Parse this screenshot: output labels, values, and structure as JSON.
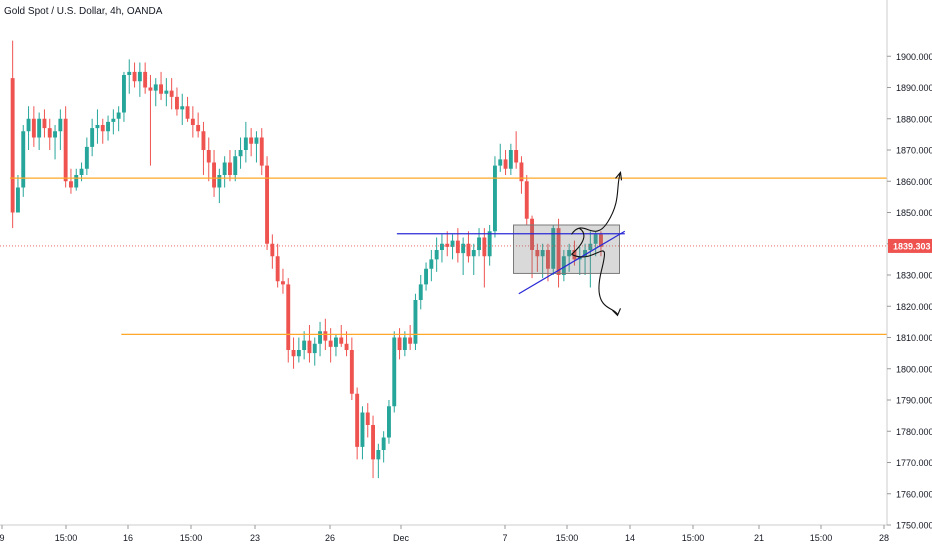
{
  "chart_data": {
    "type": "candlestick",
    "title": "Gold Spot / U.S. Dollar, 4h, OANDA",
    "last_price": "1839.303",
    "ylim": [
      1750,
      1910
    ],
    "y_ticks": [
      "1900.000",
      "1890.000",
      "1880.000",
      "1870.000",
      "1860.000",
      "1850.000",
      "1840.000",
      "1830.000",
      "1820.000",
      "1810.000",
      "1800.000",
      "1790.000",
      "1780.000",
      "1770.000",
      "1760.000",
      "1750.000"
    ],
    "x_ticks": [
      "9",
      "15:00",
      "16",
      "15:00",
      "23",
      "26",
      "Dec",
      "7",
      "15:00",
      "14",
      "15:00",
      "21",
      "15:00",
      "28"
    ],
    "colors": {
      "up": "#26a69a",
      "down": "#ef5350",
      "resistance": "#ffa726",
      "trendline": "#2b2bd6",
      "last_price_label": "#ef5350",
      "axis_text": "#131722",
      "grid_border": "#cccccc"
    },
    "horizontal_levels": [
      {
        "price": 1861,
        "from_bar": 0
      },
      {
        "price": 1811,
        "from_bar": 21
      }
    ],
    "trendlines": [
      {
        "type": "horizontal",
        "price": 1843.2,
        "from_bar": 73,
        "to_bar": 116
      },
      {
        "type": "rising",
        "from": {
          "bar": 96,
          "price": 1824
        },
        "to": {
          "bar": 116,
          "price": 1844
        }
      }
    ],
    "consolidation_box": {
      "from_bar": 95,
      "to_bar": 115,
      "top": 1846,
      "bottom": 1830.5
    },
    "scenario_arrows": [
      "up",
      "down"
    ],
    "candles_note": "OHLC values approximated from chart",
    "candles": [
      [
        1893,
        1905,
        1845,
        1850
      ],
      [
        1850,
        1862,
        1851,
        1858
      ],
      [
        1858,
        1878,
        1855,
        1876
      ],
      [
        1876,
        1884,
        1870,
        1880
      ],
      [
        1880,
        1884,
        1871,
        1874
      ],
      [
        1874,
        1882,
        1870,
        1880
      ],
      [
        1880,
        1883,
        1874,
        1877
      ],
      [
        1877,
        1880,
        1870,
        1874
      ],
      [
        1874,
        1878,
        1867,
        1876
      ],
      [
        1876,
        1883,
        1870,
        1880
      ],
      [
        1880,
        1884,
        1858,
        1860
      ],
      [
        1860,
        1864,
        1856,
        1858
      ],
      [
        1858,
        1864,
        1857,
        1862
      ],
      [
        1862,
        1866,
        1860,
        1864
      ],
      [
        1864,
        1874,
        1862,
        1871
      ],
      [
        1871,
        1880,
        1868,
        1877
      ],
      [
        1877,
        1883,
        1872,
        1878
      ],
      [
        1878,
        1880,
        1872,
        1876
      ],
      [
        1876,
        1881,
        1873,
        1879
      ],
      [
        1879,
        1883,
        1875,
        1880
      ],
      [
        1880,
        1884,
        1876,
        1882
      ],
      [
        1882,
        1895,
        1879,
        1894
      ],
      [
        1894,
        1899,
        1888,
        1895
      ],
      [
        1895,
        1898,
        1890,
        1892
      ],
      [
        1892,
        1898,
        1887,
        1895
      ],
      [
        1895,
        1898,
        1888,
        1890
      ],
      [
        1890,
        1894,
        1865,
        1889
      ],
      [
        1889,
        1893,
        1884,
        1891
      ],
      [
        1891,
        1895,
        1886,
        1888
      ],
      [
        1888,
        1893,
        1884,
        1889
      ],
      [
        1889,
        1893,
        1883,
        1887
      ],
      [
        1887,
        1890,
        1881,
        1883
      ],
      [
        1883,
        1888,
        1878,
        1884
      ],
      [
        1884,
        1887,
        1879,
        1880
      ],
      [
        1880,
        1884,
        1874,
        1878
      ],
      [
        1878,
        1882,
        1874,
        1876
      ],
      [
        1876,
        1879,
        1862,
        1870
      ],
      [
        1870,
        1874,
        1860,
        1866
      ],
      [
        1866,
        1870,
        1855,
        1858
      ],
      [
        1858,
        1864,
        1853,
        1862
      ],
      [
        1862,
        1868,
        1858,
        1866
      ],
      [
        1866,
        1870,
        1860,
        1862
      ],
      [
        1862,
        1870,
        1860,
        1868
      ],
      [
        1868,
        1874,
        1864,
        1870
      ],
      [
        1870,
        1879,
        1866,
        1874
      ],
      [
        1874,
        1877,
        1868,
        1872
      ],
      [
        1872,
        1876,
        1866,
        1874
      ],
      [
        1874,
        1877,
        1862,
        1865
      ],
      [
        1865,
        1868,
        1838,
        1840
      ],
      [
        1840,
        1843,
        1832,
        1836
      ],
      [
        1836,
        1840,
        1826,
        1828
      ],
      [
        1828,
        1832,
        1824,
        1827
      ],
      [
        1827,
        1829,
        1802,
        1806
      ],
      [
        1806,
        1810,
        1800,
        1804
      ],
      [
        1804,
        1810,
        1802,
        1806
      ],
      [
        1806,
        1812,
        1803,
        1809
      ],
      [
        1809,
        1814,
        1802,
        1805
      ],
      [
        1805,
        1810,
        1801,
        1808
      ],
      [
        1808,
        1815,
        1804,
        1812
      ],
      [
        1812,
        1816,
        1806,
        1809
      ],
      [
        1809,
        1813,
        1802,
        1807
      ],
      [
        1807,
        1811,
        1804,
        1810
      ],
      [
        1810,
        1814,
        1807,
        1808
      ],
      [
        1808,
        1812,
        1804,
        1806
      ],
      [
        1806,
        1810,
        1790,
        1792
      ],
      [
        1792,
        1794,
        1771,
        1775
      ],
      [
        1775,
        1788,
        1771,
        1786
      ],
      [
        1786,
        1789,
        1778,
        1782
      ],
      [
        1782,
        1785,
        1765,
        1771
      ],
      [
        1771,
        1776,
        1765,
        1774
      ],
      [
        1774,
        1780,
        1770,
        1778
      ],
      [
        1778,
        1790,
        1776,
        1788
      ],
      [
        1788,
        1812,
        1786,
        1810
      ],
      [
        1810,
        1813,
        1803,
        1806
      ],
      [
        1806,
        1812,
        1804,
        1810
      ],
      [
        1810,
        1814,
        1806,
        1808
      ],
      [
        1808,
        1824,
        1806,
        1822
      ],
      [
        1822,
        1830,
        1819,
        1827
      ],
      [
        1827,
        1834,
        1825,
        1832
      ],
      [
        1832,
        1838,
        1828,
        1835
      ],
      [
        1835,
        1842,
        1831,
        1838
      ],
      [
        1838,
        1843,
        1834,
        1840
      ],
      [
        1840,
        1844,
        1836,
        1839
      ],
      [
        1839,
        1843,
        1835,
        1841
      ],
      [
        1841,
        1845,
        1834,
        1837
      ],
      [
        1837,
        1842,
        1830,
        1840
      ],
      [
        1840,
        1844,
        1834,
        1836
      ],
      [
        1836,
        1840,
        1830,
        1838
      ],
      [
        1838,
        1845,
        1836,
        1842
      ],
      [
        1842,
        1845,
        1826,
        1836
      ],
      [
        1836,
        1846,
        1833,
        1844
      ],
      [
        1844,
        1868,
        1842,
        1865
      ],
      [
        1865,
        1872,
        1863,
        1867
      ],
      [
        1867,
        1870,
        1862,
        1864
      ],
      [
        1864,
        1872,
        1862,
        1870
      ],
      [
        1870,
        1876,
        1864,
        1866
      ],
      [
        1866,
        1868,
        1856,
        1860
      ],
      [
        1860,
        1862,
        1846,
        1848
      ],
      [
        1848,
        1849,
        1829,
        1838
      ],
      [
        1838,
        1840,
        1831,
        1836
      ],
      [
        1836,
        1840,
        1829,
        1838
      ],
      [
        1838,
        1840,
        1828,
        1832
      ],
      [
        1832,
        1846,
        1830,
        1845
      ],
      [
        1845,
        1848,
        1826,
        1830
      ],
      [
        1830,
        1838,
        1828,
        1836
      ],
      [
        1836,
        1840,
        1831,
        1838
      ],
      [
        1838,
        1841,
        1833,
        1835
      ],
      [
        1835,
        1839,
        1830,
        1836
      ],
      [
        1836,
        1840,
        1830,
        1838
      ],
      [
        1838,
        1844,
        1826,
        1840
      ],
      [
        1840,
        1844,
        1836,
        1843
      ],
      [
        1843,
        1844,
        1836,
        1839
      ]
    ]
  }
}
